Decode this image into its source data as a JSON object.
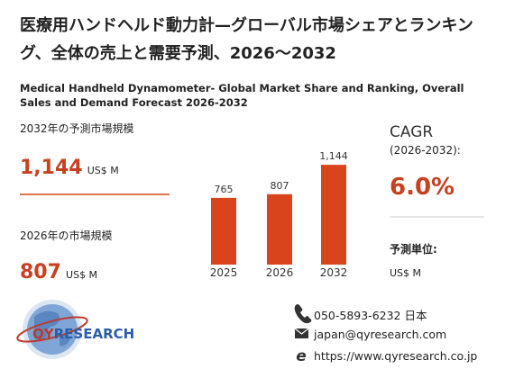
{
  "title": "医療用ハンドヘルド動力計—グローバル市場シェアとランキング、全体の売上と需要予測、2026～2032",
  "subtitle": "Medical Handheld Dynamometer- Global Market Share and Ranking, Overall Sales and Demand Forecast 2026-2032",
  "left_panel": {
    "forecast_label": "2032年の予測市場規模",
    "forecast_value": "1,144",
    "forecast_unit": "US$ M",
    "current_label": "2026年の市場規模",
    "current_value": "807",
    "current_unit": "US$ M"
  },
  "chart_data": {
    "type": "bar",
    "categories": [
      "2025",
      "2026",
      "2032"
    ],
    "values": [
      765,
      807,
      1144
    ],
    "value_labels": [
      "765",
      "807",
      "1,144"
    ],
    "color": "#d9441c",
    "ylim": [
      0,
      1300
    ]
  },
  "right_panel": {
    "cagr_label": "CAGR",
    "cagr_period": "(2026-2032):",
    "cagr_value": "6.0%",
    "unit_label": "予測単位:",
    "unit_value": "US$ M"
  },
  "logo": {
    "part1": "QY",
    "part2": "RESEARCH"
  },
  "contacts": {
    "phone": "050-5893-6232 日本",
    "email": "japan@qyresearch.com",
    "website": "https://www.qyresearch.co.jp"
  }
}
